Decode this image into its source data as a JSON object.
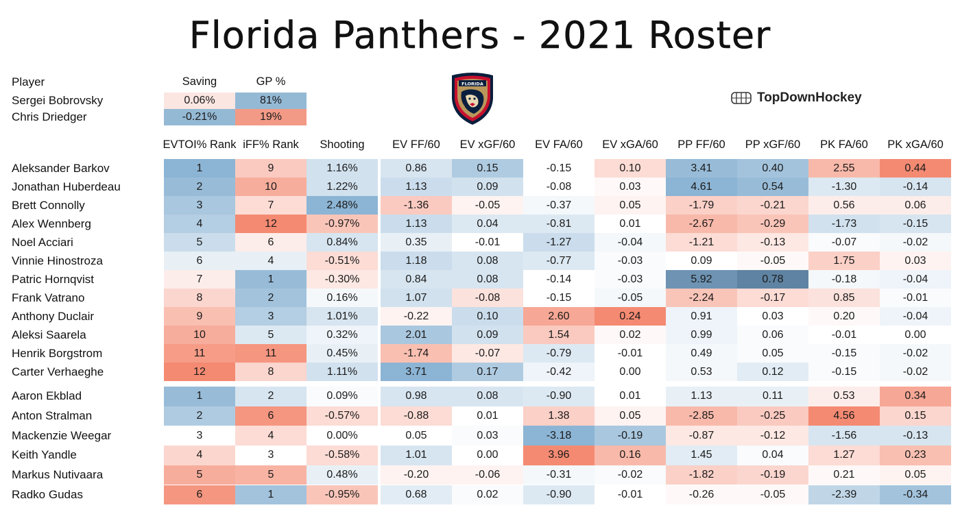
{
  "title": "Florida Panthers - 2021 Roster",
  "brand": "TopDownHockey",
  "logo_text": "FLORIDA",
  "goalies": {
    "headers": {
      "player": "Player",
      "saving": "Saving",
      "gp": "GP %"
    },
    "rows": [
      {
        "name": "Sergei Bobrovsky",
        "saving": "0.06%",
        "gp": "81%",
        "saving_color": "#fbe6e2",
        "gp_color": "#94b9d5"
      },
      {
        "name": "Chris Driedger",
        "saving": "-0.21%",
        "gp": "19%",
        "saving_color": "#94b9d5",
        "gp_color": "#f39a86"
      }
    ]
  },
  "skater_headers": [
    "EVTOI% Rank",
    "iFF% Rank",
    "Shooting",
    "EV FF/60",
    "EV xGF/60",
    "EV FA/60",
    "EV xGA/60",
    "PP FF/60",
    "PP xGF/60",
    "PK FA/60",
    "PK xGA/60"
  ],
  "scale": {
    "blue": "#8cb4d4",
    "white": "#ffffff",
    "red": "#f48a72",
    "dark_blue": "#5f83a2"
  },
  "chart_data": {
    "type": "table",
    "title": "Florida Panthers - 2021 Roster",
    "columns": [
      "EVTOI% Rank",
      "iFF% Rank",
      "Shooting",
      "EV FF/60",
      "EV xGF/60",
      "EV FA/60",
      "EV xGA/60",
      "PP FF/60",
      "PP xGF/60",
      "PK FA/60",
      "PK xGA/60"
    ],
    "goalies": [
      {
        "player": "Sergei Bobrovsky",
        "Saving": "0.06%",
        "GP %": "81%"
      },
      {
        "player": "Chris Driedger",
        "Saving": "-0.21%",
        "GP %": "19%"
      }
    ],
    "forwards": [
      {
        "name": "Aleksander Barkov",
        "vals": [
          "1",
          "9",
          "1.16%",
          "0.86",
          "0.15",
          "-0.15",
          "0.10",
          "3.41",
          "0.40",
          "2.55",
          "0.44"
        ],
        "shade": [
          -1,
          0.45,
          -0.4,
          -0.35,
          -0.7,
          0,
          0.3,
          -0.9,
          -0.8,
          0.6,
          1
        ]
      },
      {
        "name": "Jonathan Huberdeau",
        "vals": [
          "2",
          "10",
          "1.22%",
          "1.13",
          "0.09",
          "-0.08",
          "0.03",
          "4.61",
          "0.54",
          "-1.30",
          "-0.14"
        ],
        "shade": [
          -0.9,
          0.7,
          -0.4,
          -0.45,
          -0.4,
          0,
          0.05,
          -1,
          -0.9,
          -0.3,
          -0.35
        ]
      },
      {
        "name": "Brett Connolly",
        "vals": [
          "3",
          "7",
          "2.48%",
          "-1.36",
          "-0.05",
          "-0.37",
          "0.05",
          "-1.79",
          "-0.21",
          "0.56",
          "0.06"
        ],
        "shade": [
          -0.75,
          0.3,
          -1,
          0.45,
          0.1,
          -0.1,
          0.1,
          0.4,
          0.35,
          0.15,
          0.15
        ]
      },
      {
        "name": "Alex Wennberg",
        "vals": [
          "4",
          "12",
          "-0.97%",
          "1.13",
          "0.04",
          "-0.81",
          "0.01",
          "-2.67",
          "-0.29",
          "-1.73",
          "-0.15"
        ],
        "shade": [
          -0.65,
          1,
          0.5,
          -0.45,
          -0.3,
          -0.3,
          0,
          0.6,
          0.5,
          -0.4,
          -0.35
        ]
      },
      {
        "name": "Noel Acciari",
        "vals": [
          "5",
          "6",
          "0.84%",
          "0.35",
          "-0.01",
          "-1.27",
          "-0.04",
          "-1.21",
          "-0.13",
          "-0.07",
          "-0.02"
        ],
        "shade": [
          -0.45,
          0.15,
          -0.35,
          -0.2,
          0,
          -0.45,
          -0.1,
          0.3,
          0.2,
          -0.05,
          -0.1
        ]
      },
      {
        "name": "Vinnie Hinostroza",
        "vals": [
          "6",
          "4",
          "-0.51%",
          "1.18",
          "0.08",
          "-0.77",
          "-0.03",
          "0.09",
          "-0.05",
          "1.75",
          "0.03"
        ],
        "shade": [
          -0.2,
          -0.2,
          0.3,
          -0.45,
          -0.35,
          -0.3,
          -0.05,
          0,
          0.05,
          0.4,
          0.1
        ]
      },
      {
        "name": "Patric Hornqvist",
        "vals": [
          "7",
          "1",
          "-0.30%",
          "0.84",
          "0.08",
          "-0.14",
          "-0.03",
          "5.92",
          "0.78",
          "-0.18",
          "-0.04"
        ],
        "shade": [
          0.15,
          -0.9,
          0.2,
          -0.35,
          -0.35,
          0,
          -0.05,
          -1.2,
          -1.3,
          -0.1,
          -0.15
        ]
      },
      {
        "name": "Frank Vatrano",
        "vals": [
          "8",
          "2",
          "0.16%",
          "1.07",
          "-0.08",
          "-0.15",
          "-0.05",
          "-2.24",
          "-0.17",
          "0.85",
          "-0.01"
        ],
        "shade": [
          0.35,
          -0.8,
          -0.1,
          -0.4,
          0.25,
          0,
          -0.1,
          0.5,
          0.3,
          0.25,
          -0.05
        ]
      },
      {
        "name": "Anthony Duclair",
        "vals": [
          "9",
          "3",
          "1.01%",
          "-0.22",
          "0.10",
          "2.60",
          "0.24",
          "0.91",
          "0.03",
          "0.20",
          "-0.04"
        ],
        "shade": [
          0.55,
          -0.65,
          -0.35,
          0.1,
          -0.45,
          0.75,
          1,
          -0.15,
          0,
          0.05,
          -0.15
        ]
      },
      {
        "name": "Aleksi Saarela",
        "vals": [
          "10",
          "5",
          "0.32%",
          "2.01",
          "0.09",
          "1.54",
          "0.02",
          "0.99",
          "0.06",
          "-0.01",
          "0.00"
        ],
        "shade": [
          0.7,
          -0.3,
          -0.15,
          -0.75,
          -0.4,
          0.45,
          0.05,
          -0.15,
          -0.05,
          0,
          0
        ]
      },
      {
        "name": "Henrik Borgstrom",
        "vals": [
          "11",
          "11",
          "0.45%",
          "-1.74",
          "-0.07",
          "-0.79",
          "-0.01",
          "0.49",
          "0.05",
          "-0.15",
          "-0.02"
        ],
        "shade": [
          0.85,
          0.9,
          -0.2,
          0.55,
          0.2,
          -0.3,
          0,
          -0.1,
          -0.05,
          -0.05,
          -0.1
        ]
      },
      {
        "name": "Carter Verhaeghe",
        "vals": [
          "12",
          "8",
          "1.11%",
          "3.71",
          "0.17",
          "-0.42",
          "0.00",
          "0.53",
          "0.12",
          "-0.15",
          "-0.02"
        ],
        "shade": [
          1,
          0.35,
          -0.4,
          -1,
          -0.7,
          -0.15,
          0,
          -0.1,
          -0.25,
          -0.05,
          -0.1
        ]
      }
    ],
    "defense": [
      {
        "name": "Aaron Ekblad",
        "vals": [
          "1",
          "2",
          "0.09%",
          "0.98",
          "0.08",
          "-0.90",
          "0.01",
          "1.13",
          "0.11",
          "0.53",
          "0.34"
        ],
        "shade": [
          -0.9,
          -0.35,
          -0.05,
          -0.35,
          -0.35,
          -0.3,
          0,
          -0.2,
          -0.2,
          0.15,
          0.75
        ]
      },
      {
        "name": "Anton Stralman",
        "vals": [
          "2",
          "6",
          "-0.57%",
          "-0.88",
          "0.01",
          "1.38",
          "0.05",
          "-2.85",
          "-0.25",
          "4.56",
          "0.15"
        ],
        "shade": [
          -0.7,
          0.9,
          0.3,
          0.3,
          0,
          0.4,
          0.1,
          0.6,
          0.45,
          1,
          0.35
        ]
      },
      {
        "name": "Mackenzie Weegar",
        "vals": [
          "3",
          "4",
          "0.00%",
          "0.05",
          "0.03",
          "-3.18",
          "-0.19",
          "-0.87",
          "-0.12",
          "-1.56",
          "-0.13"
        ],
        "shade": [
          0,
          0.3,
          0,
          0,
          -0.05,
          -1,
          -0.75,
          0.2,
          0.2,
          -0.35,
          -0.35
        ]
      },
      {
        "name": "Keith Yandle",
        "vals": [
          "4",
          "3",
          "-0.58%",
          "1.01",
          "0.00",
          "3.96",
          "0.16",
          "1.45",
          "0.04",
          "1.27",
          "0.23"
        ],
        "shade": [
          0.35,
          0,
          0.3,
          -0.35,
          0,
          1,
          0.6,
          -0.25,
          -0.05,
          0.3,
          0.55
        ]
      },
      {
        "name": "Markus Nutivaara",
        "vals": [
          "5",
          "5",
          "0.48%",
          "-0.20",
          "-0.06",
          "-0.31",
          "-0.02",
          "-1.82",
          "-0.19",
          "0.21",
          "0.05"
        ],
        "shade": [
          0.7,
          0.65,
          -0.2,
          0.1,
          0.1,
          -0.1,
          -0.05,
          0.4,
          0.35,
          0.05,
          0.1
        ]
      },
      {
        "name": "Radko Gudas",
        "vals": [
          "6",
          "1",
          "-0.95%",
          "0.68",
          "0.02",
          "-0.90",
          "-0.01",
          "-0.26",
          "-0.05",
          "-2.39",
          "-0.34"
        ],
        "shade": [
          0.9,
          -0.8,
          0.5,
          -0.25,
          -0.05,
          -0.3,
          0,
          0.05,
          0.05,
          -0.55,
          -0.8
        ]
      }
    ]
  }
}
